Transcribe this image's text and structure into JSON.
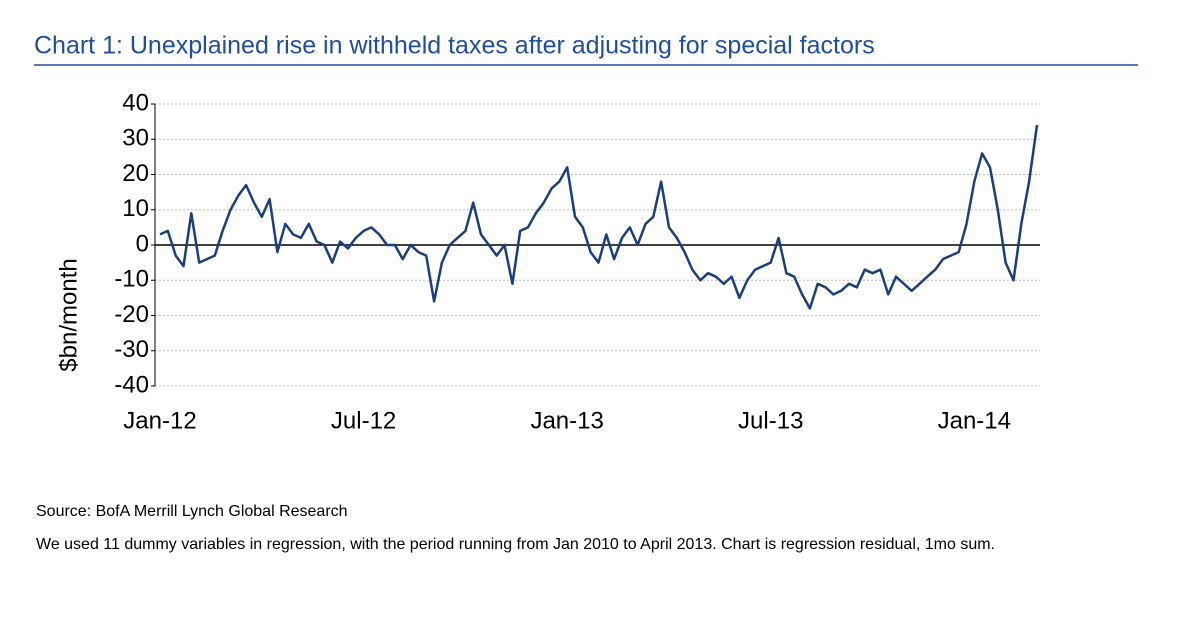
{
  "chart_data": {
    "type": "line",
    "title": "Chart 1: Unexplained rise in withheld taxes after adjusting for special factors",
    "ylabel": "$bn/month",
    "notes": [
      "Source: BofA Merrill Lynch Global Research",
      "We used 11 dummy variables in regression, with the period running from Jan 2010 to April 2013. Chart is regression residual, 1mo sum."
    ],
    "categories": [
      "Jan-12",
      null,
      null,
      null,
      null,
      null,
      null,
      null,
      null,
      null,
      null,
      null,
      null,
      null,
      null,
      null,
      null,
      null,
      null,
      null,
      null,
      null,
      null,
      null,
      null,
      null,
      "Jul-12",
      null,
      null,
      null,
      null,
      null,
      null,
      null,
      null,
      null,
      null,
      null,
      null,
      null,
      null,
      null,
      null,
      null,
      null,
      null,
      null,
      null,
      null,
      null,
      null,
      null,
      "Jan-13",
      null,
      null,
      null,
      null,
      null,
      null,
      null,
      null,
      null,
      null,
      null,
      null,
      null,
      null,
      null,
      null,
      null,
      null,
      null,
      null,
      null,
      null,
      null,
      null,
      null,
      "Jul-13",
      null,
      null,
      null,
      null,
      null,
      null,
      null,
      null,
      null,
      null,
      null,
      null,
      null,
      null,
      null,
      null,
      null,
      null,
      null,
      null,
      null,
      null,
      null,
      null,
      null,
      "Jan-14",
      null,
      null,
      null,
      null,
      null,
      null,
      null,
      null
    ],
    "series": [
      {
        "name": "Residual",
        "color": "#1a3f7a",
        "values": [
          3,
          4,
          -3,
          -6,
          9,
          -5,
          -4,
          -3,
          4,
          10,
          14,
          17,
          12,
          8,
          13,
          -2,
          6,
          3,
          2,
          6,
          1,
          0,
          -5,
          1,
          -1,
          2,
          4,
          5,
          3,
          0,
          0,
          -4,
          0,
          -2,
          -3,
          -16,
          -5,
          0,
          2,
          4,
          12,
          3,
          0,
          -3,
          0,
          -11,
          4,
          5,
          9,
          12,
          16,
          18,
          22,
          8,
          5,
          -2,
          -5,
          3,
          -4,
          2,
          5,
          0,
          6,
          8,
          18,
          5,
          2,
          -2,
          -7,
          -10,
          -8,
          -9,
          -11,
          -9,
          -15,
          -10,
          -7,
          -6,
          -5,
          2,
          -8,
          -9,
          -14,
          -18,
          -11,
          -12,
          -14,
          -13,
          -11,
          -12,
          -7,
          -8,
          -7,
          -14,
          -9,
          -11,
          -13,
          -11,
          -9,
          -7,
          -4,
          -3,
          -2,
          6,
          18,
          26,
          22,
          10,
          -5,
          -10,
          6,
          18,
          34
        ]
      }
    ],
    "ylim": [
      -40,
      40
    ],
    "yticks": [
      -40,
      -30,
      -20,
      -10,
      0,
      10,
      20,
      30,
      40
    ],
    "grid": true
  }
}
